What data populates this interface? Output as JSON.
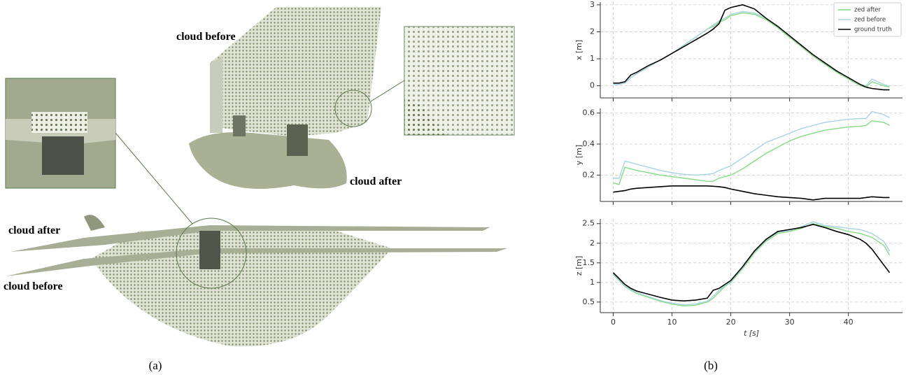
{
  "panel_a": {
    "labels": [
      "cloud before",
      "cloud after",
      "cloud after",
      "cloud before"
    ],
    "caption": "(a)"
  },
  "panel_b": {
    "caption": "(b)"
  },
  "chart_data": [
    {
      "type": "line",
      "ylabel": "x [m]",
      "legend": "upper right",
      "grid": true,
      "x": [
        0,
        1,
        2,
        3,
        4,
        6,
        8,
        10,
        12,
        14,
        16,
        17,
        18,
        19,
        20,
        22,
        24,
        26,
        28,
        30,
        32,
        34,
        36,
        38,
        40,
        42,
        43,
        44,
        46,
        47
      ],
      "xlim": [
        -2.2,
        49.2
      ],
      "ylim": [
        -0.45,
        3.1
      ],
      "yticks": [
        0,
        1,
        2,
        3
      ],
      "series": [
        {
          "name": "zed after",
          "color": "#84dc84",
          "values": [
            0.05,
            0.05,
            0.1,
            0.3,
            0.45,
            0.7,
            0.95,
            1.2,
            1.5,
            1.8,
            2.1,
            2.2,
            2.35,
            2.45,
            2.6,
            2.7,
            2.65,
            2.45,
            2.15,
            1.8,
            1.45,
            1.1,
            0.8,
            0.5,
            0.25,
            0.0,
            -0.05,
            0.15,
            0.0,
            -0.05
          ]
        },
        {
          "name": "zed before",
          "color": "#a9d2e3",
          "values": [
            0.05,
            0.05,
            0.1,
            0.3,
            0.45,
            0.7,
            0.95,
            1.2,
            1.5,
            1.8,
            2.1,
            2.25,
            2.4,
            2.5,
            2.65,
            2.75,
            2.7,
            2.5,
            2.2,
            1.85,
            1.5,
            1.15,
            0.85,
            0.55,
            0.3,
            0.05,
            0.0,
            0.25,
            0.05,
            -0.02
          ]
        },
        {
          "name": "ground truth",
          "color": "#000000",
          "values": [
            0.1,
            0.1,
            0.15,
            0.4,
            0.5,
            0.75,
            0.95,
            1.2,
            1.45,
            1.7,
            1.95,
            2.1,
            2.3,
            2.8,
            2.9,
            3.0,
            2.85,
            2.5,
            2.2,
            1.85,
            1.5,
            1.15,
            0.85,
            0.55,
            0.3,
            0.05,
            -0.05,
            -0.1,
            -0.15,
            -0.15
          ]
        }
      ]
    },
    {
      "type": "line",
      "ylabel": "y [m]",
      "grid": true,
      "x": [
        0,
        1,
        2,
        3,
        4,
        6,
        8,
        10,
        12,
        14,
        16,
        17,
        18,
        19,
        20,
        22,
        24,
        26,
        28,
        30,
        32,
        34,
        36,
        38,
        40,
        42,
        43,
        44,
        46,
        47
      ],
      "xlim": [
        -2.2,
        49.2
      ],
      "ylim": [
        0.03,
        0.63
      ],
      "yticks": [
        0.2,
        0.4,
        0.6
      ],
      "series": [
        {
          "name": "zed after",
          "color": "#84dc84",
          "values": [
            0.15,
            0.14,
            0.25,
            0.24,
            0.23,
            0.215,
            0.2,
            0.19,
            0.18,
            0.17,
            0.16,
            0.16,
            0.18,
            0.19,
            0.2,
            0.24,
            0.29,
            0.34,
            0.38,
            0.42,
            0.45,
            0.47,
            0.49,
            0.5,
            0.51,
            0.515,
            0.52,
            0.55,
            0.54,
            0.52
          ]
        },
        {
          "name": "zed before",
          "color": "#a9d2e3",
          "values": [
            0.18,
            0.18,
            0.29,
            0.28,
            0.27,
            0.25,
            0.23,
            0.215,
            0.205,
            0.2,
            0.205,
            0.21,
            0.23,
            0.245,
            0.26,
            0.31,
            0.36,
            0.41,
            0.44,
            0.47,
            0.5,
            0.52,
            0.54,
            0.55,
            0.56,
            0.565,
            0.565,
            0.61,
            0.59,
            0.57
          ]
        },
        {
          "name": "ground truth",
          "color": "#000000",
          "values": [
            0.09,
            0.095,
            0.1,
            0.11,
            0.115,
            0.12,
            0.125,
            0.13,
            0.13,
            0.13,
            0.13,
            0.128,
            0.125,
            0.12,
            0.11,
            0.095,
            0.08,
            0.07,
            0.06,
            0.055,
            0.05,
            0.04,
            0.05,
            0.05,
            0.05,
            0.05,
            0.055,
            0.06,
            0.055,
            0.055
          ]
        }
      ]
    },
    {
      "type": "line",
      "ylabel": "z [m]",
      "xlabel": "t [s]",
      "grid": true,
      "x": [
        0,
        1,
        2,
        3,
        4,
        6,
        8,
        10,
        12,
        14,
        16,
        17,
        18,
        19,
        20,
        22,
        24,
        26,
        28,
        30,
        32,
        34,
        36,
        38,
        40,
        42,
        43,
        44,
        46,
        47
      ],
      "xlim": [
        -2.2,
        49.2
      ],
      "xticks": [
        0,
        10,
        20,
        30,
        40
      ],
      "ylim": [
        0.23,
        2.62
      ],
      "yticks": [
        0.5,
        1.0,
        1.5,
        2.0,
        2.5
      ],
      "series": [
        {
          "name": "zed after",
          "color": "#84dc84",
          "values": [
            1.2,
            1.05,
            0.9,
            0.8,
            0.72,
            0.62,
            0.52,
            0.45,
            0.4,
            0.42,
            0.5,
            0.6,
            0.75,
            0.9,
            1.0,
            1.35,
            1.75,
            2.05,
            2.25,
            2.3,
            2.38,
            2.5,
            2.42,
            2.38,
            2.3,
            2.25,
            2.2,
            2.15,
            1.95,
            1.7
          ]
        },
        {
          "name": "zed before",
          "color": "#a9d2e3",
          "values": [
            1.22,
            1.07,
            0.92,
            0.82,
            0.74,
            0.64,
            0.54,
            0.47,
            0.43,
            0.45,
            0.52,
            0.65,
            0.8,
            0.92,
            1.02,
            1.38,
            1.78,
            2.08,
            2.28,
            2.32,
            2.42,
            2.55,
            2.45,
            2.42,
            2.38,
            2.35,
            2.3,
            2.25,
            2.05,
            1.8
          ]
        },
        {
          "name": "ground truth",
          "color": "#000000",
          "values": [
            1.25,
            1.1,
            0.95,
            0.85,
            0.78,
            0.7,
            0.62,
            0.55,
            0.53,
            0.55,
            0.6,
            0.8,
            0.85,
            0.95,
            1.05,
            1.4,
            1.8,
            2.1,
            2.3,
            2.35,
            2.4,
            2.48,
            2.4,
            2.3,
            2.22,
            2.1,
            2.0,
            1.85,
            1.45,
            1.25
          ]
        }
      ]
    }
  ]
}
